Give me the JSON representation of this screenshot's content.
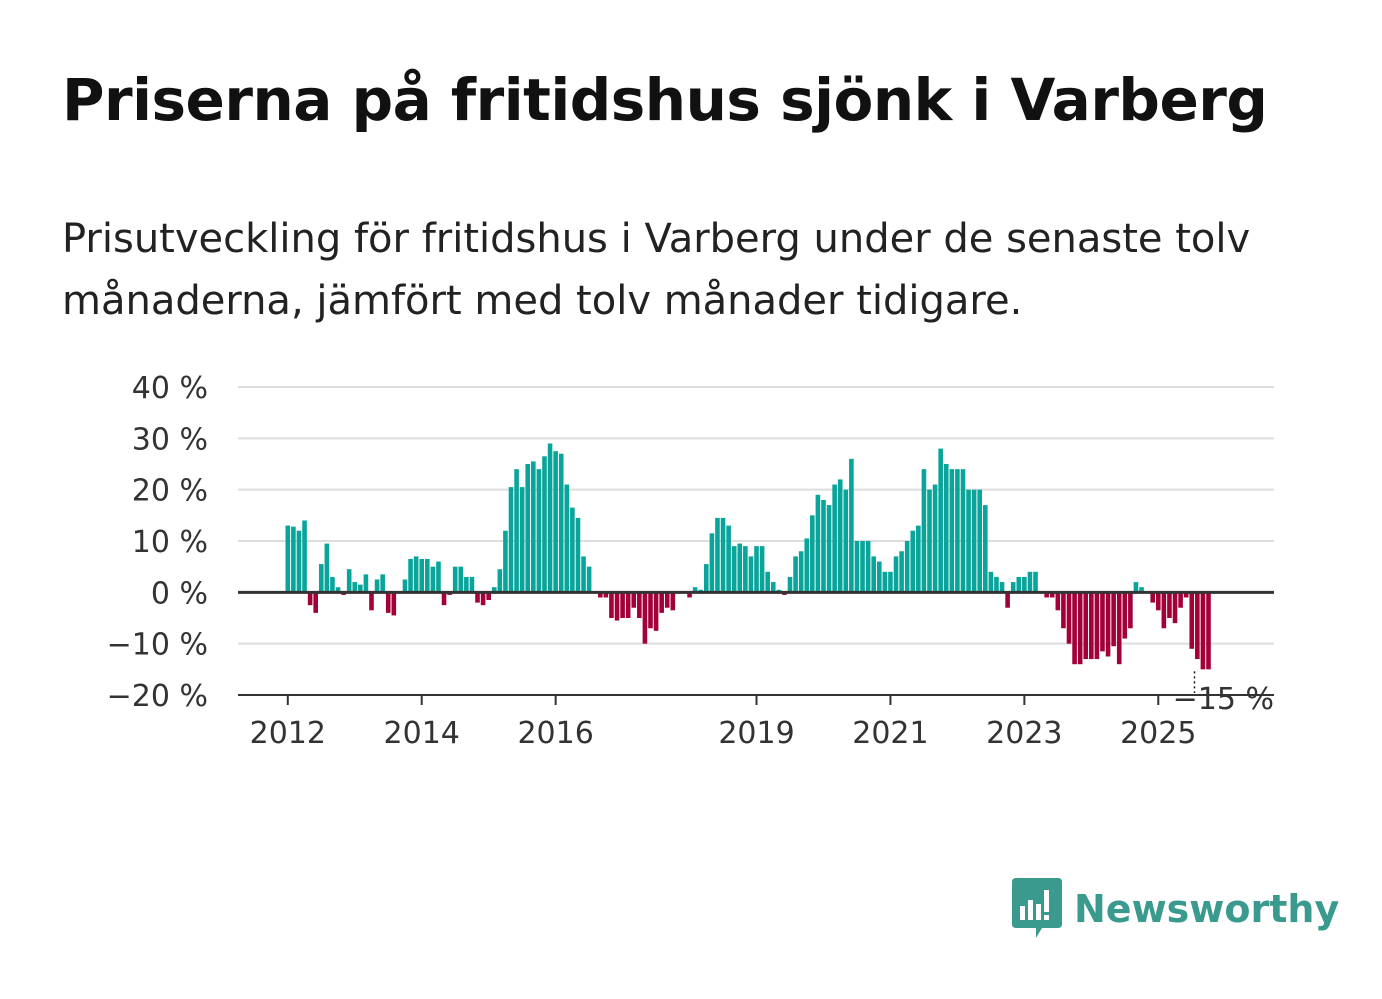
{
  "title": "Priserna på fritidshus sjönk i Varberg",
  "subtitle": "Prisutveckling för fritidshus i Varberg under de senaste tolv månaderna, jämfört med tolv månader tidigare.",
  "brand": {
    "name": "Newsworthy",
    "color": "#3a9a8e",
    "icon": "newsworthy-bar-chart-icon"
  },
  "colors": {
    "positive": "#0aa59a",
    "negative": "#a3003a",
    "grid": "#dddddd",
    "zero": "#333333"
  },
  "chart_data": {
    "type": "bar",
    "title": "Priserna på fritidshus sjönk i Varberg",
    "xlabel": "",
    "ylabel": "",
    "ylim": [
      -20,
      40
    ],
    "yticks": [
      40,
      30,
      20,
      10,
      0,
      -10,
      -20
    ],
    "ytick_labels": [
      "40 %",
      "30 %",
      "20 %",
      "10 %",
      "0 %",
      "−10 %",
      "−20 %"
    ],
    "xticks": [
      {
        "label": "2012",
        "index": 0
      },
      {
        "label": "2014",
        "index": 24
      },
      {
        "label": "2016",
        "index": 48
      },
      {
        "label": "2019",
        "index": 84
      },
      {
        "label": "2021",
        "index": 108
      },
      {
        "label": "2023",
        "index": 132
      },
      {
        "label": "2025",
        "index": 156
      }
    ],
    "start": "2012-01",
    "frequency": "monthly",
    "values": [
      13,
      12.8,
      12,
      14,
      -2.5,
      -4,
      5.5,
      9.5,
      3,
      1,
      -0.5,
      4.5,
      2,
      1.5,
      3.5,
      -3.5,
      2.5,
      3.5,
      -4,
      -4.5,
      0,
      2.5,
      6.5,
      7,
      6.5,
      6.5,
      5,
      6,
      -2.5,
      -0.5,
      5,
      5,
      3,
      3,
      -2,
      -2.5,
      -1.5,
      1,
      4.5,
      12,
      20.5,
      24,
      20.5,
      25,
      25.5,
      24,
      26.5,
      29,
      27.5,
      27,
      21,
      16.5,
      14.5,
      7,
      5,
      0,
      -1,
      -1,
      -5,
      -5.5,
      -5,
      -5,
      -3,
      -5,
      -10,
      -7,
      -7.5,
      -4,
      -3,
      -3.5,
      0,
      0,
      -1,
      1,
      0.5,
      5.5,
      11.5,
      14.5,
      14.5,
      13,
      9,
      9.5,
      9,
      7,
      9,
      9,
      4,
      2,
      0.5,
      -0.5,
      3,
      7,
      8,
      10.5,
      15,
      19,
      18,
      17,
      21,
      22,
      20,
      26,
      10,
      10,
      10,
      7,
      6,
      4,
      4,
      7,
      8,
      10,
      12,
      13,
      24,
      20,
      21,
      28,
      25,
      24,
      24,
      24,
      20,
      20,
      20,
      17,
      4,
      3,
      2,
      -3,
      2,
      3,
      3,
      4,
      4,
      0,
      -1,
      -1,
      -3.5,
      -7,
      -10,
      -14,
      -14,
      -13,
      -13,
      -13,
      -11.5,
      -12.5,
      -10.5,
      -14,
      -9,
      -7,
      2,
      1,
      0,
      -2,
      -3.5,
      -7,
      -5,
      -6,
      -3,
      -1,
      -11,
      -13,
      -15,
      -15
    ],
    "annotation": "−15 %"
  }
}
